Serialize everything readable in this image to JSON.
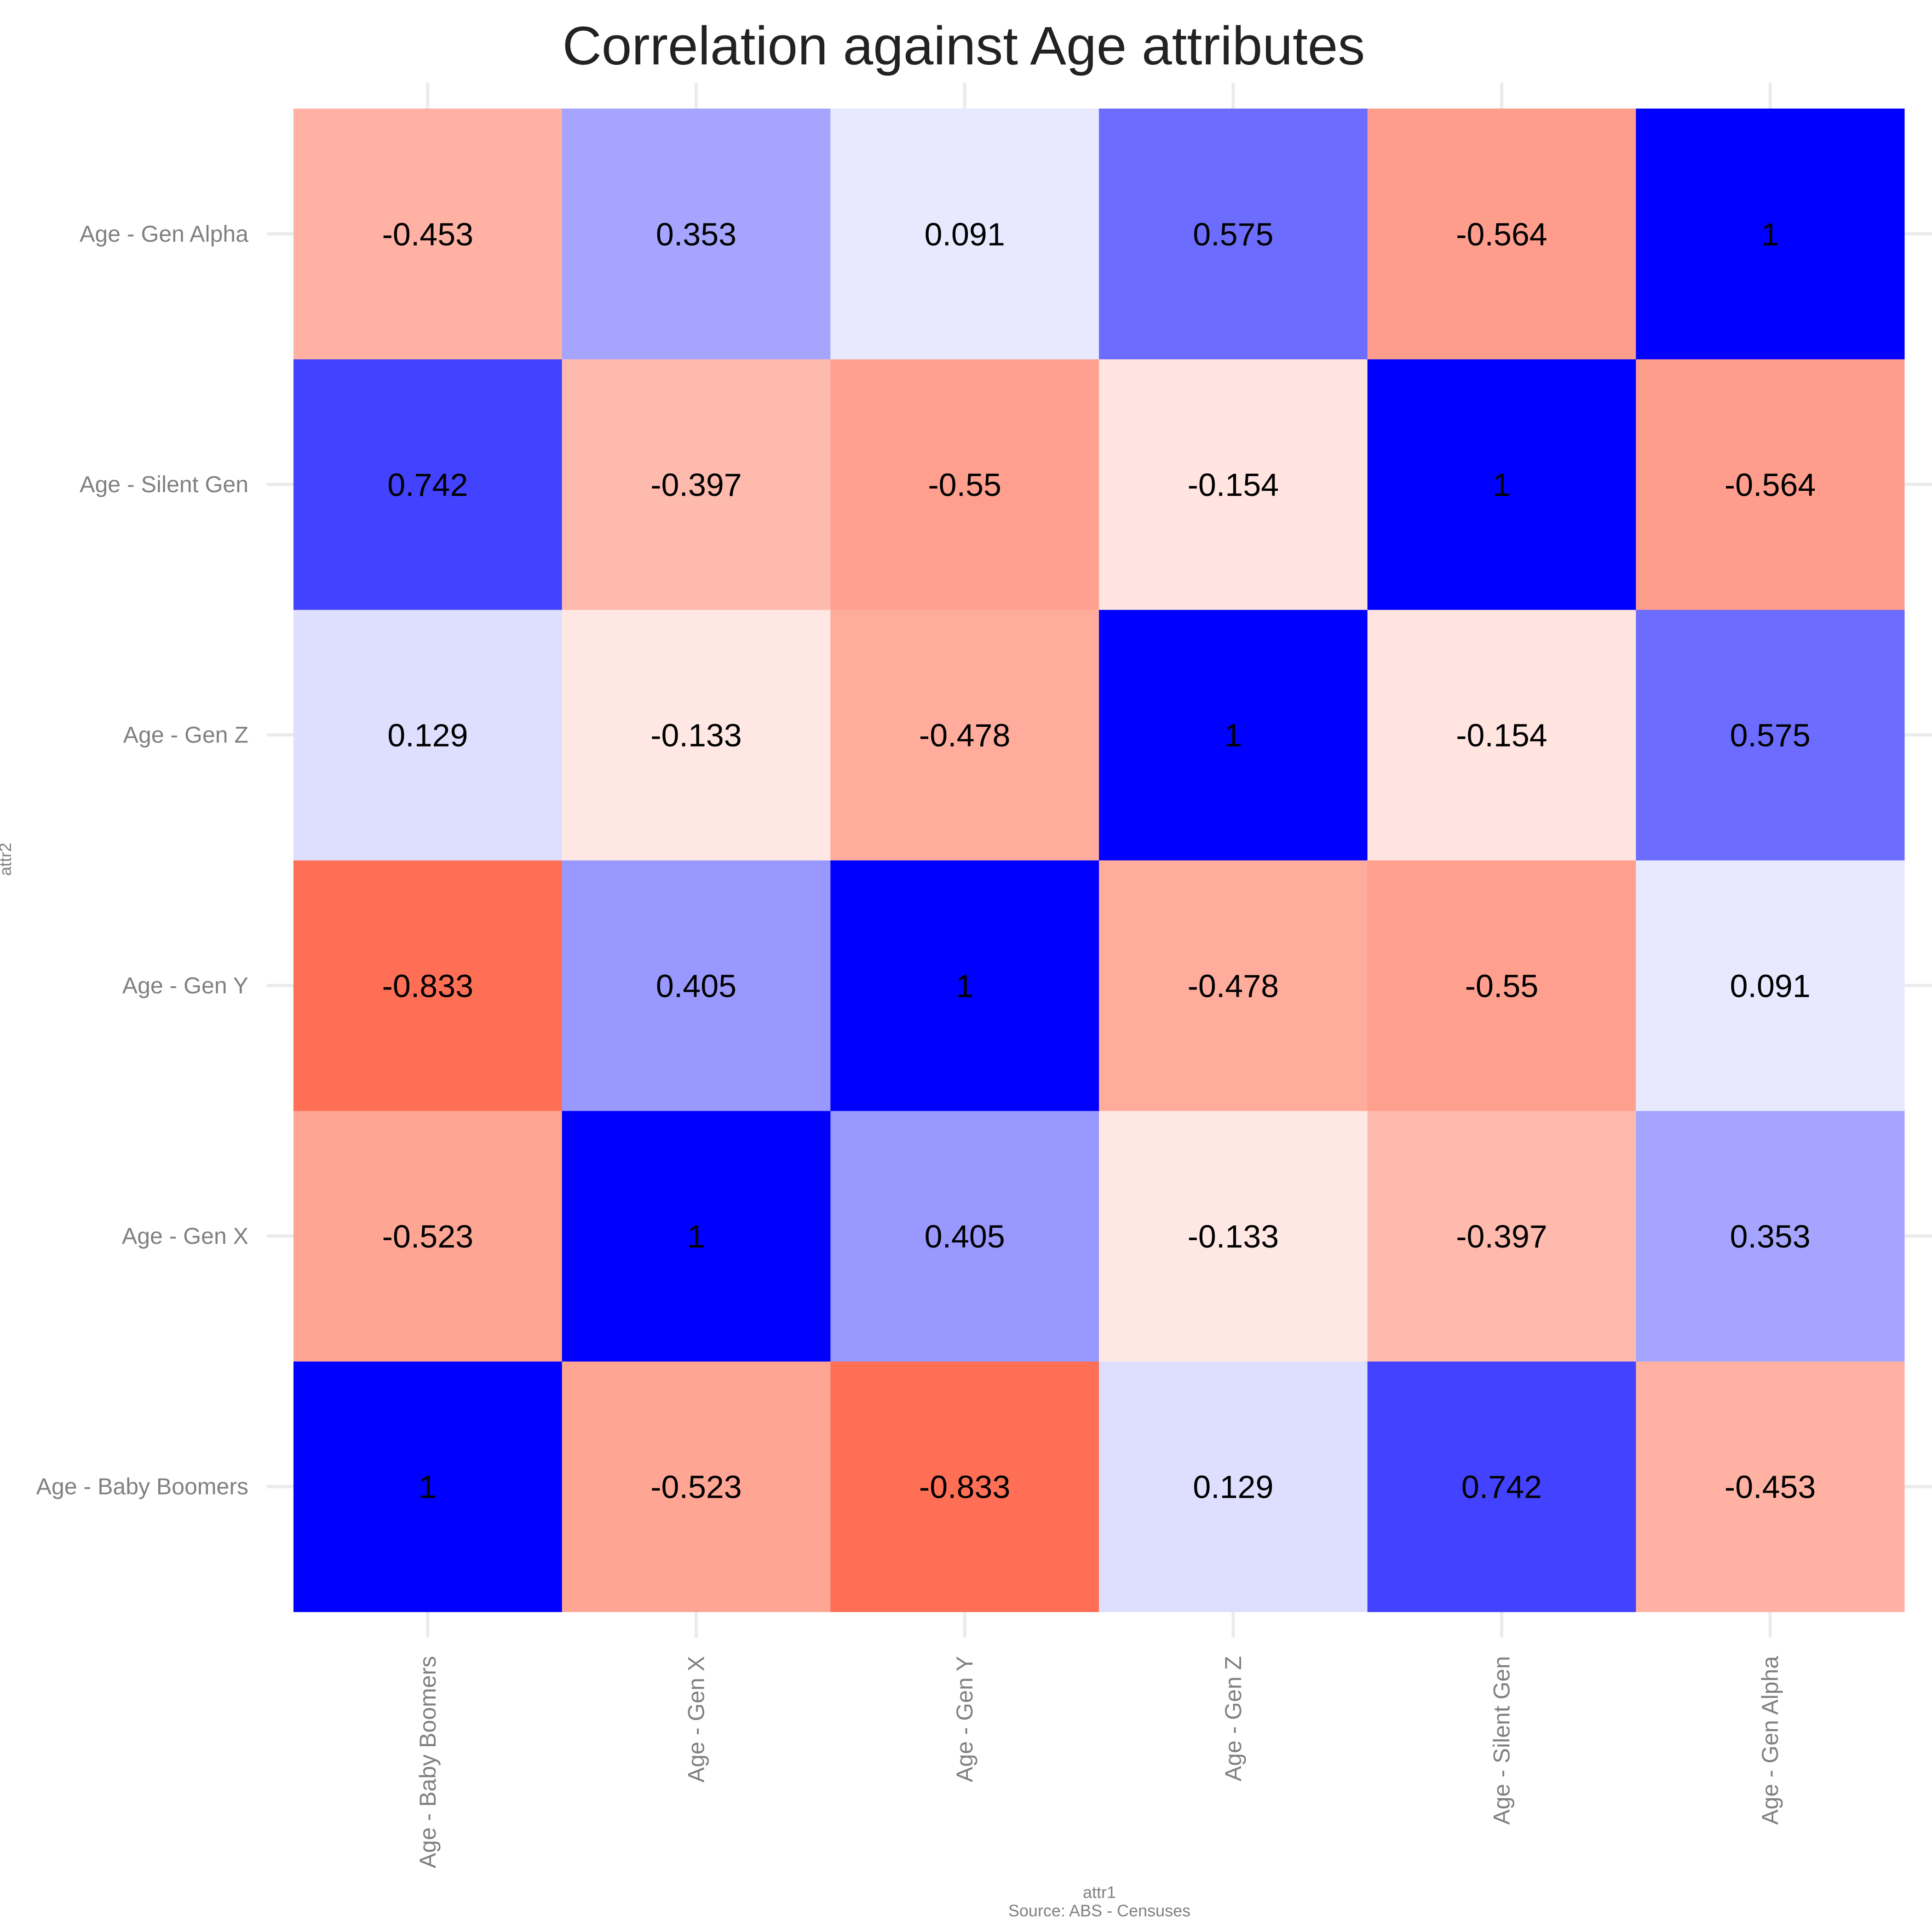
{
  "chart_data": {
    "type": "heatmap",
    "title": "Correlation against Age attributes",
    "xlabel": "attr1",
    "ylabel": "attr2",
    "caption": "Source: ABS - Censuses",
    "x_categories": [
      "Age - Baby Boomers",
      "Age - Gen X",
      "Age - Gen Y",
      "Age - Gen Z",
      "Age - Silent Gen",
      "Age - Gen Alpha"
    ],
    "y_categories": [
      "Age - Baby Boomers",
      "Age - Gen X",
      "Age - Gen Y",
      "Age - Gen Z",
      "Age - Silent Gen",
      "Age - Gen Alpha"
    ],
    "matrix": [
      [
        1,
        -0.523,
        -0.833,
        0.129,
        0.742,
        -0.453
      ],
      [
        -0.523,
        1,
        0.405,
        -0.133,
        -0.397,
        0.353
      ],
      [
        -0.833,
        0.405,
        1,
        -0.478,
        -0.55,
        0.091
      ],
      [
        0.129,
        -0.133,
        -0.478,
        1,
        -0.154,
        0.575
      ],
      [
        0.742,
        -0.397,
        -0.55,
        -0.154,
        1,
        -0.564
      ],
      [
        -0.453,
        0.353,
        0.091,
        0.575,
        -0.564,
        1
      ]
    ],
    "colors": {
      "negative": "#ff5233",
      "zero": "#ffffff",
      "positive": "#0000ff",
      "grid": "#ebebeb",
      "tick_text": "#7f8080",
      "title_text": "#222222"
    },
    "grid": true,
    "legend": "none"
  }
}
